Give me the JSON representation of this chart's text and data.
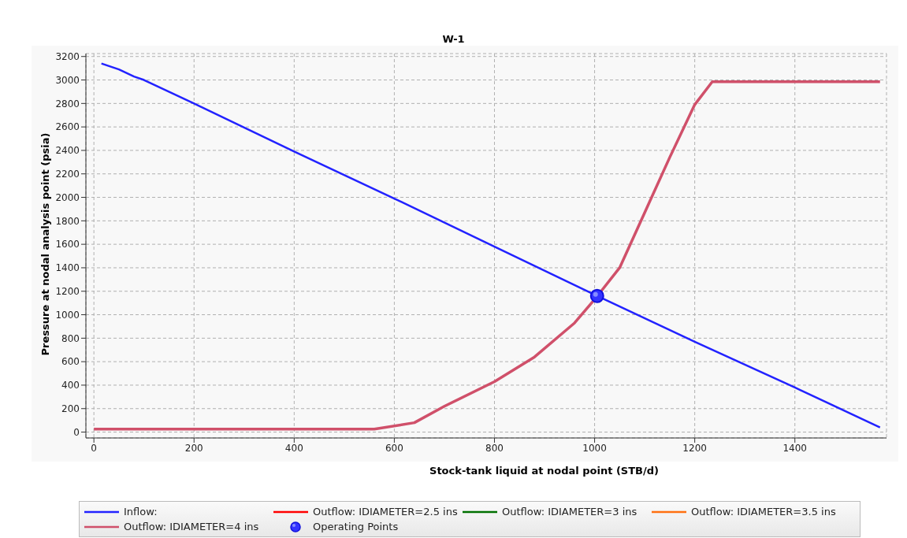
{
  "chart_data": {
    "type": "line",
    "title": "W-1",
    "xlabel": "Stock-tank liquid at nodal point (STB/d)",
    "ylabel": "Pressure at nodal analysis point (psia)",
    "xlim": [
      -16,
      1583
    ],
    "xticks": [
      0,
      200,
      400,
      600,
      800,
      1000,
      1200,
      1400
    ],
    "ylim": [
      -50,
      3225
    ],
    "yticks": [
      0,
      200,
      400,
      600,
      800,
      1000,
      1200,
      1400,
      1600,
      1800,
      2000,
      2200,
      2400,
      2600,
      2800,
      3000,
      3200
    ],
    "grid": true,
    "legend": "bottom",
    "line_style": "solid",
    "marker": "none",
    "series": [
      {
        "name": "Inflow:",
        "color": "#2222ff",
        "x": [
          15,
          50,
          80,
          100,
          200,
          400,
          600,
          800,
          1000,
          1200,
          1400,
          1570
        ],
        "values": [
          3140,
          3090,
          3030,
          3000,
          2800,
          2390,
          1990,
          1580,
          1170,
          770,
          380,
          40
        ]
      },
      {
        "name": "Outflow: IDIAMETER=2.5 ins",
        "color": "#ff0000"
      },
      {
        "name": "Outflow: IDIAMETER=3 ins",
        "color": "#007000"
      },
      {
        "name": "Outflow: IDIAMETER=3.5 ins",
        "color": "#ff7010"
      },
      {
        "name": "Outflow: IDIAMETER=4 ins",
        "color": "#d0506a",
        "x": [
          0,
          560,
          640,
          700,
          800,
          880,
          960,
          1000,
          1050,
          1100,
          1150,
          1200,
          1235,
          1570
        ],
        "values": [
          25,
          25,
          80,
          220,
          430,
          640,
          930,
          1130,
          1400,
          1870,
          2340,
          2790,
          2985,
          2985
        ]
      },
      {
        "name": "Operating Points",
        "type": "scatter",
        "marker": "circle",
        "color": "#3333ff",
        "x": [
          1005
        ],
        "values": [
          1160
        ]
      }
    ]
  }
}
